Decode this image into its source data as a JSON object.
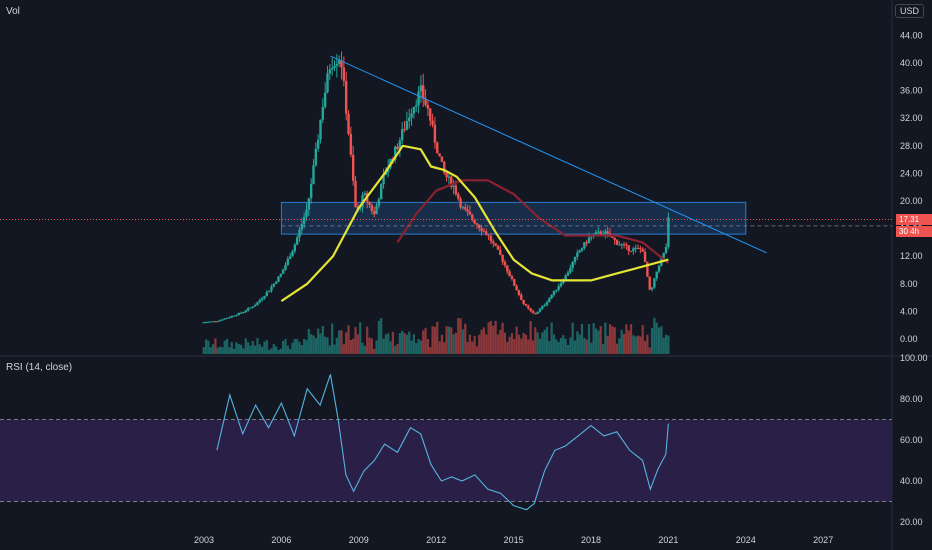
{
  "header": {
    "volume_label": "Vol",
    "currency": "USD"
  },
  "rsi_panel": {
    "label": "RSI (14, close)"
  },
  "price_badges": {
    "last_price": "17.31",
    "countdown": "30 4h"
  },
  "colors": {
    "background": "#131722",
    "up": "#26a69a",
    "down": "#ef5350",
    "ma_yellow": "#e4e436",
    "ma_red": "#8c2230",
    "trendline": "#2196f3",
    "rsi_line": "#56b4e0",
    "rsi_band": "#2a1f47",
    "zone": "#1e4a7a"
  },
  "chart_data": [
    {
      "type": "candlestick",
      "x_ticks": [
        "2003",
        "2006",
        "2009",
        "2012",
        "2015",
        "2018",
        "2021",
        "2024",
        "2027"
      ],
      "y_ticks": [
        "0.00",
        "4.00",
        "8.00",
        "12.00",
        "16.00",
        "20.00",
        "24.00",
        "28.00",
        "32.00",
        "36.00",
        "40.00",
        "44.00"
      ],
      "ylim": [
        -1,
        45
      ],
      "last_price": 17.31,
      "close_path": [
        [
          2002.9,
          2.4
        ],
        [
          2003.5,
          2.6
        ],
        [
          2004.0,
          3.2
        ],
        [
          2004.5,
          3.9
        ],
        [
          2005.0,
          5.0
        ],
        [
          2005.5,
          7.0
        ],
        [
          2006.0,
          9.5
        ],
        [
          2006.5,
          13.5
        ],
        [
          2007.0,
          19.0
        ],
        [
          2007.3,
          26.0
        ],
        [
          2007.6,
          34.0
        ],
        [
          2007.9,
          40.0
        ],
        [
          2008.3,
          41.0
        ],
        [
          2008.6,
          30.0
        ],
        [
          2008.9,
          18.0
        ],
        [
          2009.2,
          21.0
        ],
        [
          2009.6,
          18.0
        ],
        [
          2010.0,
          24.0
        ],
        [
          2010.5,
          28.0
        ],
        [
          2011.0,
          33.0
        ],
        [
          2011.4,
          36.0
        ],
        [
          2011.7,
          33.0
        ],
        [
          2012.0,
          28.0
        ],
        [
          2012.3,
          24.0
        ],
        [
          2012.7,
          22.0
        ],
        [
          2013.0,
          19.0
        ],
        [
          2013.5,
          17.0
        ],
        [
          2014.0,
          15.0
        ],
        [
          2014.5,
          12.0
        ],
        [
          2015.0,
          8.0
        ],
        [
          2015.4,
          5.0
        ],
        [
          2015.8,
          3.5
        ],
        [
          2016.2,
          5.0
        ],
        [
          2016.6,
          7.0
        ],
        [
          2017.0,
          9.0
        ],
        [
          2017.5,
          12.5
        ],
        [
          2018.0,
          15.0
        ],
        [
          2018.5,
          15.5
        ],
        [
          2019.0,
          14.0
        ],
        [
          2019.5,
          13.0
        ],
        [
          2020.0,
          13.0
        ],
        [
          2020.3,
          6.5
        ],
        [
          2020.6,
          10.5
        ],
        [
          2020.9,
          13.0
        ],
        [
          2021.0,
          17.3
        ]
      ],
      "ma_yellow": [
        [
          2006.0,
          5.5
        ],
        [
          2007.0,
          8.0
        ],
        [
          2008.0,
          12.0
        ],
        [
          2009.0,
          19.0
        ],
        [
          2010.0,
          24.0
        ],
        [
          2010.7,
          28.0
        ],
        [
          2011.4,
          27.5
        ],
        [
          2011.8,
          25.0
        ],
        [
          2012.3,
          24.5
        ],
        [
          2012.8,
          23.5
        ],
        [
          2013.5,
          20.5
        ],
        [
          2014.3,
          15.5
        ],
        [
          2015.0,
          11.5
        ],
        [
          2015.7,
          9.5
        ],
        [
          2016.5,
          8.5
        ],
        [
          2017.3,
          8.5
        ],
        [
          2018.0,
          8.5
        ],
        [
          2019.0,
          9.5
        ],
        [
          2020.0,
          10.5
        ],
        [
          2021.0,
          11.5
        ]
      ],
      "ma_red": [
        [
          2010.5,
          14.0
        ],
        [
          2011.2,
          18.0
        ],
        [
          2012.0,
          21.5
        ],
        [
          2013.0,
          23.0
        ],
        [
          2014.0,
          23.0
        ],
        [
          2015.0,
          21.0
        ],
        [
          2016.0,
          17.5
        ],
        [
          2017.0,
          15.0
        ],
        [
          2018.0,
          15.0
        ],
        [
          2019.0,
          15.0
        ],
        [
          2020.0,
          14.0
        ],
        [
          2020.5,
          12.5
        ],
        [
          2021.0,
          11.0
        ]
      ],
      "trendline": [
        [
          2007.9,
          41.0
        ],
        [
          2024.8,
          12.5
        ]
      ],
      "zone": {
        "y_low": 15.2,
        "y_high": 19.8,
        "x_start": 2006.0,
        "x_end": 2024.0
      }
    },
    {
      "type": "line",
      "title": "RSI (14, close)",
      "y_ticks": [
        "20.00",
        "40.00",
        "60.00",
        "80.00",
        "100.00"
      ],
      "ylim": [
        20,
        100
      ],
      "levels": [
        70,
        30
      ],
      "series": [
        {
          "values": [
            [
              2003.5,
              55
            ],
            [
              2004.0,
              82
            ],
            [
              2004.5,
              63
            ],
            [
              2005.0,
              77
            ],
            [
              2005.5,
              66
            ],
            [
              2006.0,
              78
            ],
            [
              2006.5,
              62
            ],
            [
              2007.0,
              85
            ],
            [
              2007.5,
              77
            ],
            [
              2007.9,
              92
            ],
            [
              2008.2,
              70
            ],
            [
              2008.5,
              43
            ],
            [
              2008.8,
              35
            ],
            [
              2009.2,
              45
            ],
            [
              2009.6,
              50
            ],
            [
              2010.0,
              58
            ],
            [
              2010.5,
              54
            ],
            [
              2011.0,
              66
            ],
            [
              2011.4,
              63
            ],
            [
              2011.8,
              48
            ],
            [
              2012.2,
              40
            ],
            [
              2012.6,
              42
            ],
            [
              2013.0,
              40
            ],
            [
              2013.5,
              43
            ],
            [
              2014.0,
              36
            ],
            [
              2014.5,
              34
            ],
            [
              2015.0,
              28
            ],
            [
              2015.5,
              26
            ],
            [
              2015.8,
              29
            ],
            [
              2016.2,
              45
            ],
            [
              2016.6,
              55
            ],
            [
              2017.0,
              57
            ],
            [
              2017.5,
              62
            ],
            [
              2018.0,
              67
            ],
            [
              2018.5,
              62
            ],
            [
              2019.0,
              64
            ],
            [
              2019.5,
              55
            ],
            [
              2020.0,
              50
            ],
            [
              2020.3,
              36
            ],
            [
              2020.6,
              46
            ],
            [
              2020.9,
              53
            ],
            [
              2021.0,
              68
            ]
          ]
        }
      ]
    }
  ]
}
